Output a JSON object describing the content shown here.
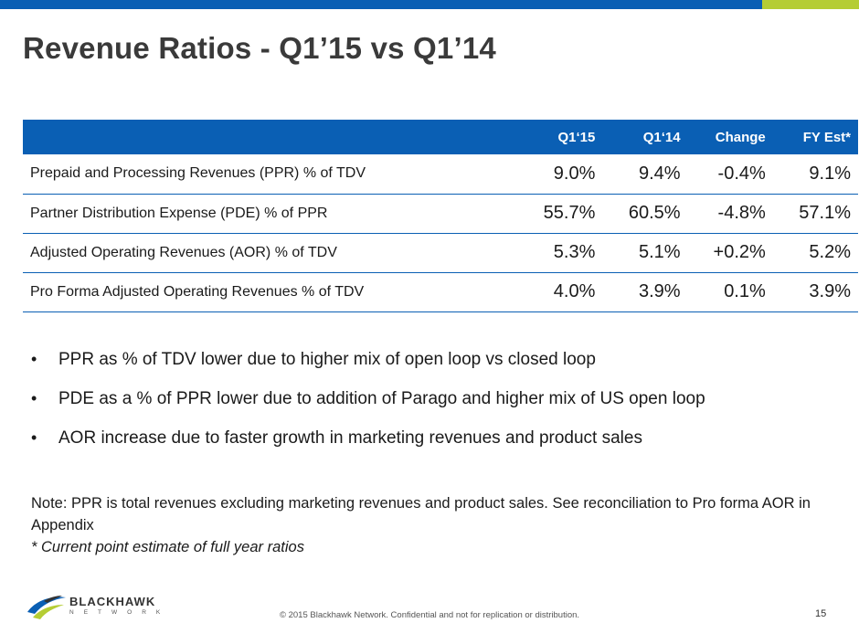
{
  "slide": {
    "title": "Revenue Ratios - Q1’15 vs Q1’14",
    "colors": {
      "accent_blue": "#0a5fb4",
      "accent_green": "#b5cd34"
    }
  },
  "table": {
    "headers": [
      "",
      "Q1‘15",
      "Q1‘14",
      "Change",
      "FY Est*"
    ],
    "rows": [
      {
        "label": "Prepaid and Processing Revenues (PPR) % of TDV",
        "values": [
          "9.0%",
          "9.4%",
          "-0.4%",
          "9.1%"
        ]
      },
      {
        "label": "Partner Distribution Expense (PDE) % of PPR",
        "values": [
          "55.7%",
          "60.5%",
          "-4.8%",
          "57.1%"
        ]
      },
      {
        "label": "Adjusted Operating Revenues (AOR) % of TDV",
        "values": [
          "5.3%",
          "5.1%",
          "+0.2%",
          "5.2%"
        ]
      },
      {
        "label": "Pro Forma Adjusted Operating Revenues % of TDV",
        "values": [
          "4.0%",
          "3.9%",
          "0.1%",
          "3.9%"
        ]
      }
    ]
  },
  "bullets": [
    "PPR as % of TDV lower due to higher mix of open loop vs closed loop",
    "PDE as a % of PPR lower due to addition of Parago and higher mix of US open loop",
    "AOR increase due to faster growth in marketing revenues and product sales"
  ],
  "bullet_glyph": "•",
  "note": {
    "text": "Note:  PPR is total revenues excluding marketing revenues and product sales.  See reconciliation to Pro forma AOR in Appendix",
    "footnote": "*  Current point estimate of  full year ratios"
  },
  "logo": {
    "name": "BLACKHAWK",
    "sub": "NETWORK",
    "icon": "blackhawk-swoosh-icon"
  },
  "footer": {
    "copyright": "© 2015 Blackhawk Network. Confidential and not for replication or distribution.",
    "page_number": "15"
  }
}
